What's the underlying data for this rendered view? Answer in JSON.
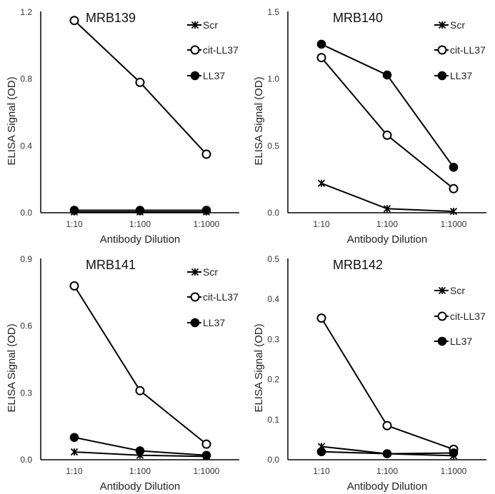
{
  "chart_data": [
    {
      "type": "line",
      "title": "MRB139",
      "xlabel": "Antibody Dilution",
      "ylabel": "ELISA Signal (OD)",
      "categories": [
        "1:10",
        "1:100",
        "1:1000"
      ],
      "ylim": [
        0,
        1.2
      ],
      "yticks": [
        "0.0",
        "0.4",
        "0.8",
        "1.2"
      ],
      "ytick_values": [
        0,
        0.4,
        0.8,
        1.2
      ],
      "legend_position": "top-right",
      "series": [
        {
          "name": "Scr",
          "marker": "asterisk",
          "values": [
            0.005,
            0.005,
            0.005
          ]
        },
        {
          "name": "cit-LL37",
          "marker": "open-circle",
          "values": [
            1.15,
            0.78,
            0.35
          ]
        },
        {
          "name": "LL37",
          "marker": "filled-circle",
          "values": [
            0.015,
            0.015,
            0.015
          ]
        }
      ]
    },
    {
      "type": "line",
      "title": "MRB140",
      "xlabel": "Antibody Dilution",
      "ylabel": "ELISA Signal (OD)",
      "categories": [
        "1:10",
        "1:100",
        "1:1000"
      ],
      "ylim": [
        0,
        1.5
      ],
      "yticks": [
        "0.0",
        "0.5",
        "1.0",
        "1.5"
      ],
      "ytick_values": [
        0,
        0.5,
        1.0,
        1.5
      ],
      "legend_position": "top-right",
      "series": [
        {
          "name": "Scr",
          "marker": "asterisk",
          "values": [
            0.22,
            0.03,
            0.01
          ]
        },
        {
          "name": "cit-LL37",
          "marker": "open-circle",
          "values": [
            1.16,
            0.58,
            0.18
          ]
        },
        {
          "name": "LL37",
          "marker": "filled-circle",
          "values": [
            1.26,
            1.03,
            0.34
          ]
        }
      ]
    },
    {
      "type": "line",
      "title": "MRB141",
      "xlabel": "Antibody Dilution",
      "ylabel": "ELISA Signal (OD)",
      "categories": [
        "1:10",
        "1:100",
        "1:1000"
      ],
      "ylim": [
        0,
        0.9
      ],
      "yticks": [
        "0.0",
        "0.3",
        "0.6",
        "0.9"
      ],
      "ytick_values": [
        0,
        0.3,
        0.6,
        0.9
      ],
      "legend_position": "top-right",
      "series": [
        {
          "name": "Scr",
          "marker": "asterisk",
          "values": [
            0.035,
            0.02,
            0.015
          ]
        },
        {
          "name": "cit-LL37",
          "marker": "open-circle",
          "values": [
            0.78,
            0.31,
            0.07
          ]
        },
        {
          "name": "LL37",
          "marker": "filled-circle",
          "values": [
            0.1,
            0.04,
            0.02
          ]
        }
      ]
    },
    {
      "type": "line",
      "title": "MRB142",
      "xlabel": "Antibody Dilution",
      "ylabel": "ELISA Signal (OD)",
      "categories": [
        "1:10",
        "1:100",
        "1:1000"
      ],
      "ylim": [
        0,
        0.5
      ],
      "yticks": [
        "0.0",
        "0.1",
        "0.2",
        "0.3",
        "0.4",
        "0.5"
      ],
      "ytick_values": [
        0,
        0.1,
        0.2,
        0.3,
        0.4,
        0.5
      ],
      "legend_position": "top-right",
      "series": [
        {
          "name": "Scr",
          "marker": "asterisk",
          "values": [
            0.033,
            0.015,
            0.01
          ]
        },
        {
          "name": "cit-LL37",
          "marker": "open-circle",
          "values": [
            0.353,
            0.085,
            0.026
          ]
        },
        {
          "name": "LL37",
          "marker": "filled-circle",
          "values": [
            0.02,
            0.015,
            0.017
          ]
        }
      ]
    }
  ]
}
